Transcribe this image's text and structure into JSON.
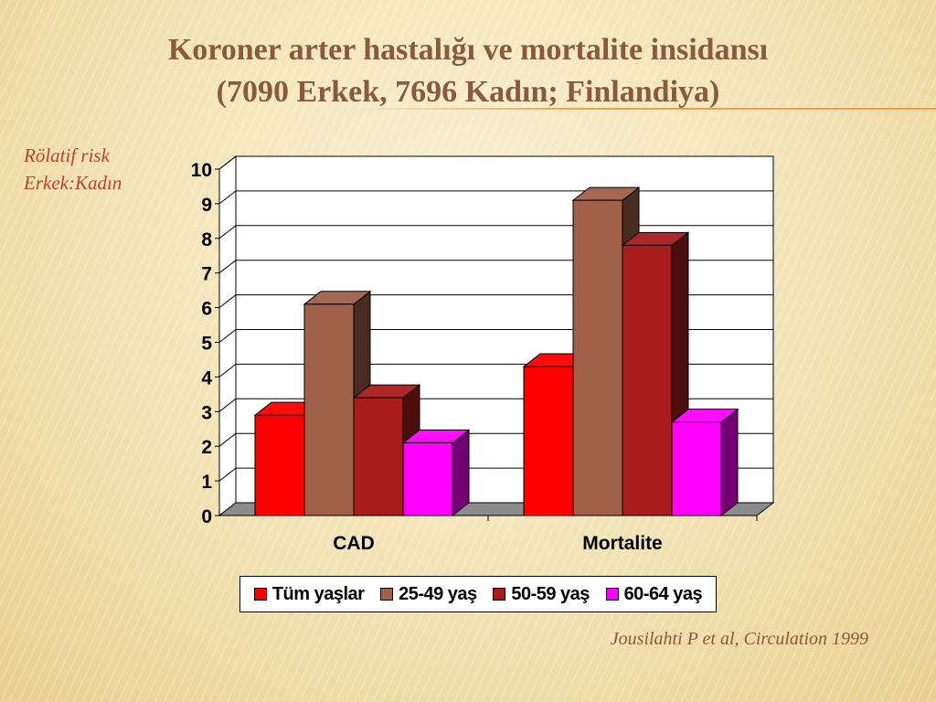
{
  "slide": {
    "title_line1": "Koroner arter hastalığı ve mortalite insidansı",
    "title_line2": "(7090 Erkek, 7696 Kadın; Finlandiya)",
    "ylabel_line1": "Rölatif risk",
    "ylabel_line2": "Erkek:Kadın",
    "citation": "Jousilahti P et al, Circulation 1999"
  },
  "chart_data": {
    "type": "bar",
    "categories": [
      "CAD",
      "Mortalite"
    ],
    "series": [
      {
        "name": "Tüm yaşlar",
        "values": [
          2.9,
          4.3
        ],
        "color": "#ff0000"
      },
      {
        "name": "25-49 yaş",
        "values": [
          6.1,
          9.1
        ],
        "color": "#a0604a"
      },
      {
        "name": "50-59 yaş",
        "values": [
          3.4,
          7.8
        ],
        "color": "#a81c1c"
      },
      {
        "name": "60-64 yaş",
        "values": [
          2.1,
          2.7
        ],
        "color": "#ff00ff"
      }
    ],
    "ylim": [
      0,
      10
    ],
    "yticks": [
      0,
      1,
      2,
      3,
      4,
      5,
      6,
      7,
      8,
      9,
      10
    ],
    "grid": true,
    "legend_position": "bottom"
  }
}
